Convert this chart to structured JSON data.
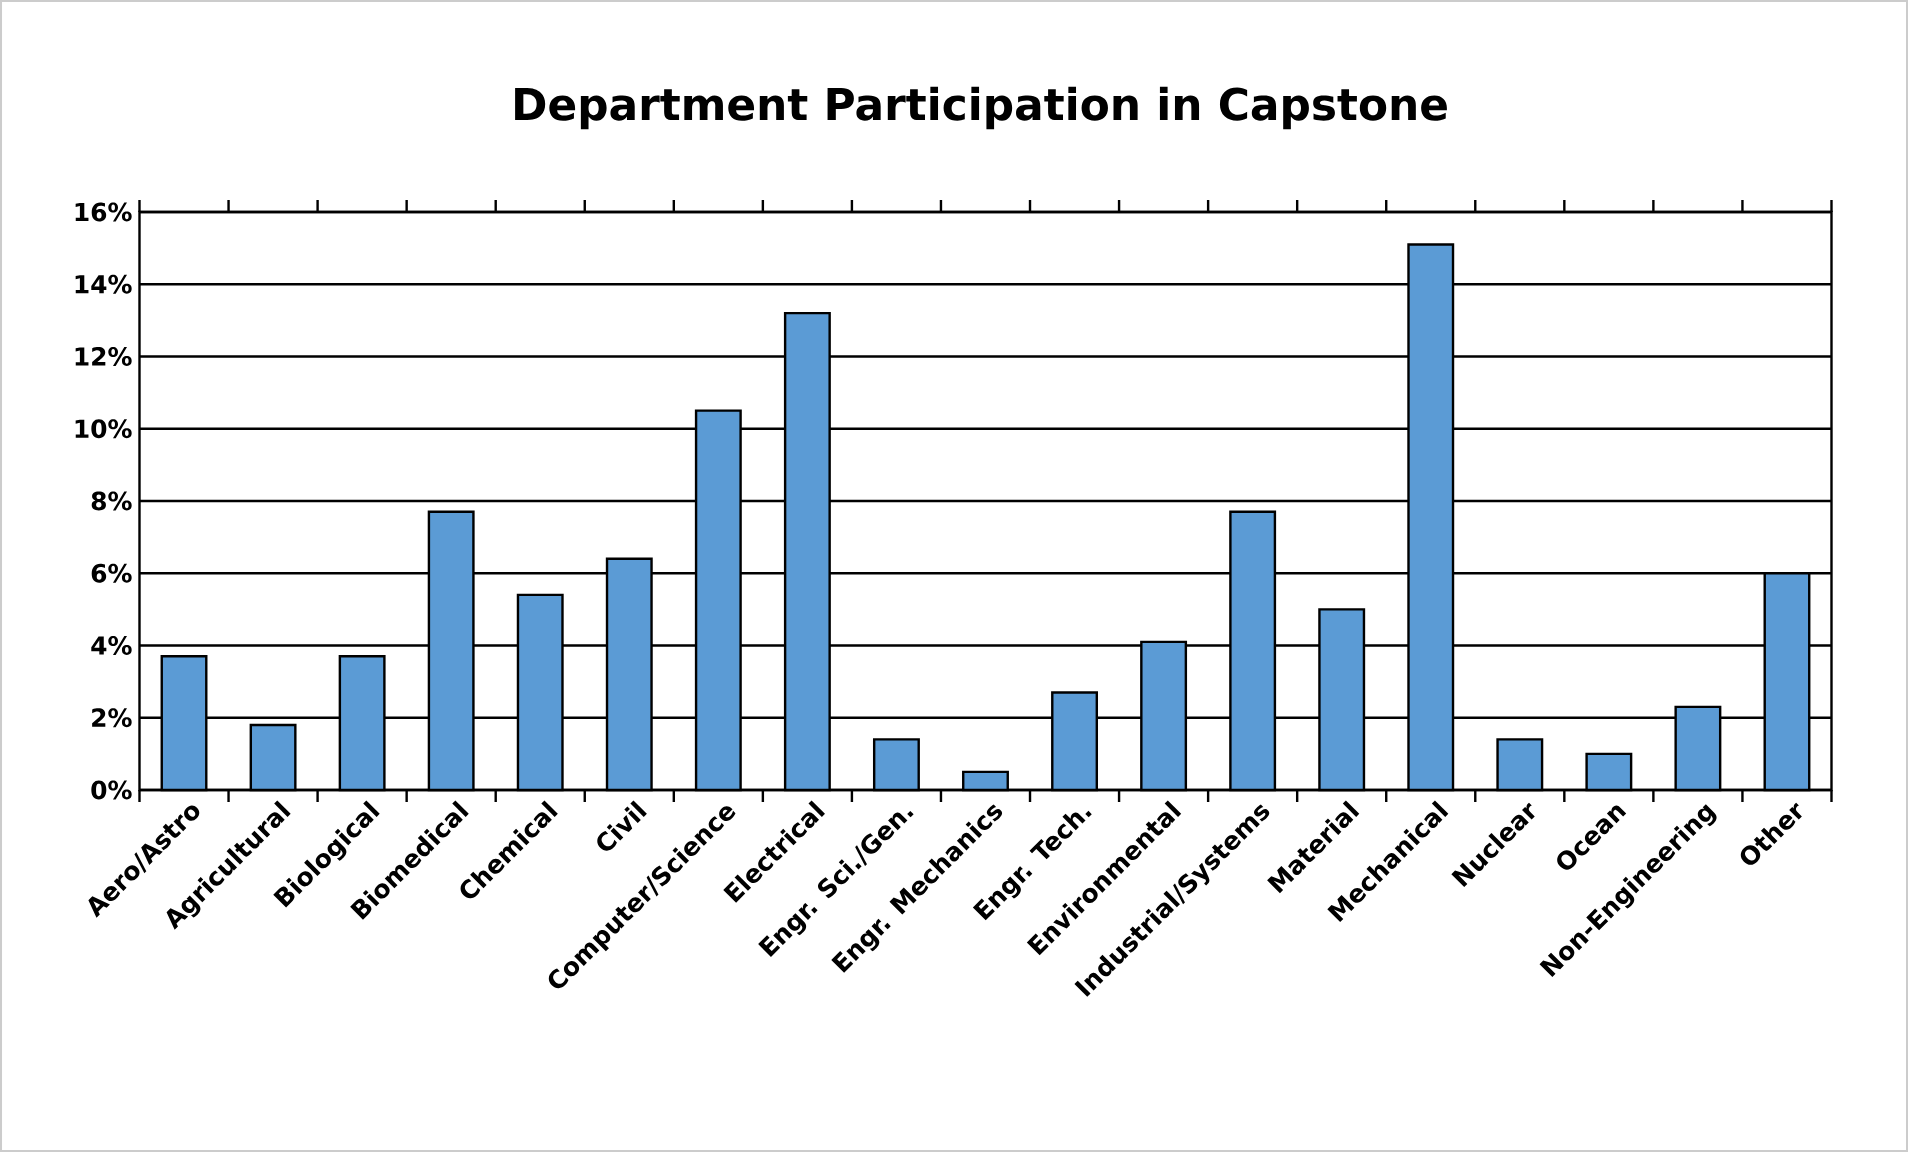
{
  "chart_data": {
    "type": "bar",
    "title": "Department Participation in Capstone",
    "categories": [
      "Aero/Astro",
      "Agricultural",
      "Biological",
      "Biomedical",
      "Chemical",
      "Civil",
      "Computer/Science",
      "Electrical",
      "Engr. Sci./Gen.",
      "Engr. Mechanics",
      "Engr. Tech.",
      "Environmental",
      "Industrial/Systems",
      "Material",
      "Mechanical",
      "Nuclear",
      "Ocean",
      "Non-Engineering",
      "Other"
    ],
    "values": [
      3.7,
      1.8,
      3.7,
      7.7,
      5.4,
      6.4,
      10.5,
      13.2,
      1.4,
      0.5,
      2.7,
      4.1,
      7.7,
      5.0,
      15.1,
      1.4,
      1.0,
      2.3,
      6.0
    ],
    "color": "#5b9bd5",
    "ylim": [
      0,
      16
    ],
    "yticks": [
      {
        "value": 0,
        "label": "0%"
      },
      {
        "value": 2,
        "label": "2%"
      },
      {
        "value": 4,
        "label": "4%"
      },
      {
        "value": 6,
        "label": "6%"
      },
      {
        "value": 8,
        "label": "8%"
      },
      {
        "value": 10,
        "label": "10%"
      },
      {
        "value": 12,
        "label": "12%"
      },
      {
        "value": 14,
        "label": "14%"
      },
      {
        "value": 16,
        "label": "16%"
      }
    ],
    "grid": "y"
  }
}
